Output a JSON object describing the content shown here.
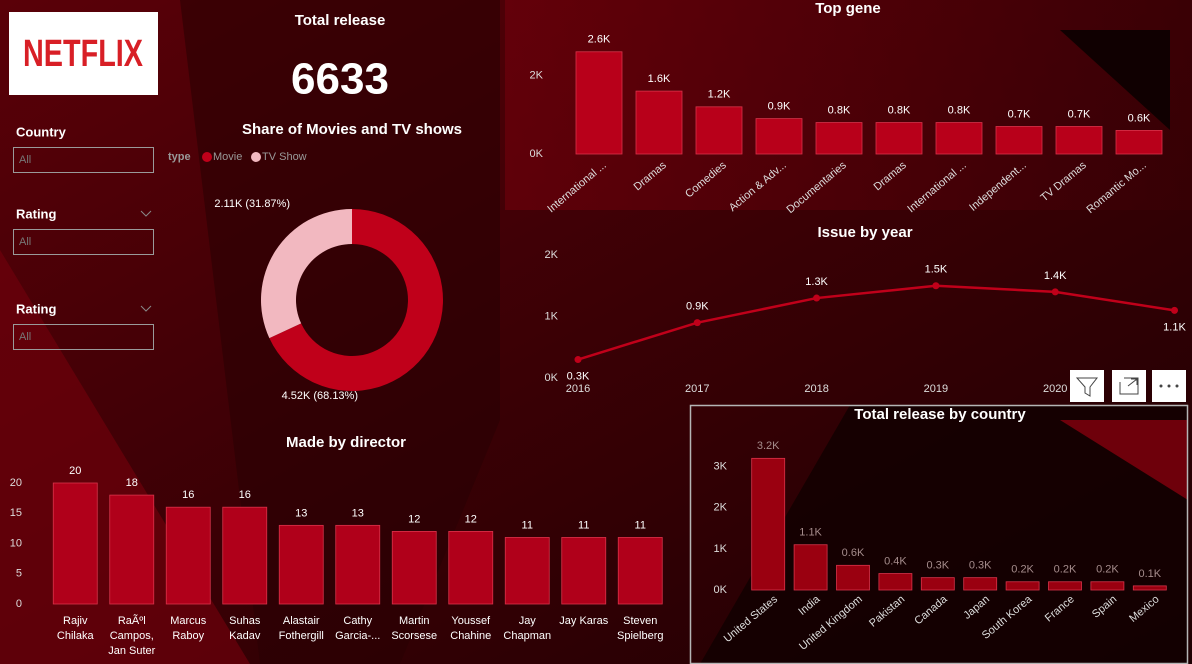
{
  "logo": {
    "text": "NETFLIX"
  },
  "kpi": {
    "title": "Total release",
    "value": 6633
  },
  "slicers": [
    {
      "label": "Country",
      "value": "All"
    },
    {
      "label": "Rating",
      "value": "All"
    },
    {
      "label": "Rating",
      "value": "All"
    }
  ],
  "chart_data": [
    {
      "type": "donut",
      "title": "Share of Movies and TV shows",
      "legend_title": "type",
      "categories": [
        "Movie",
        "TV Show"
      ],
      "values": [
        4519,
        2114
      ],
      "value_labels": [
        "4.52K (68.13%)",
        "2.11K (31.87%)"
      ],
      "colors": [
        "#c0001a",
        "#f2b8c0"
      ]
    },
    {
      "type": "bar",
      "title": "Top gene",
      "categories": [
        "International ...",
        "Dramas",
        "Comedies",
        "Action & Adv...",
        "Documentaries",
        "Dramas",
        "International ...",
        "Independent...",
        "TV Dramas",
        "Romantic Mo..."
      ],
      "values": [
        2600,
        1600,
        1200,
        900,
        800,
        800,
        800,
        700,
        700,
        600
      ],
      "value_labels": [
        "2.6K",
        "1.6K",
        "1.2K",
        "0.9K",
        "0.8K",
        "0.8K",
        "0.8K",
        "0.7K",
        "0.7K",
        "0.6K"
      ],
      "color": "#b8001a",
      "ylim": [
        0,
        2900
      ],
      "yticks": [
        {
          "value": 0,
          "label": "0K"
        },
        {
          "value": 2000,
          "label": "2K"
        }
      ]
    },
    {
      "type": "line",
      "title": "Issue by year",
      "categories": [
        "2016",
        "2017",
        "2018",
        "2019",
        "2020",
        null
      ],
      "values": [
        300,
        900,
        1300,
        1500,
        1400,
        1100
      ],
      "value_labels": [
        "0.3K",
        "0.9K",
        "1.3K",
        "1.5K",
        "1.4K",
        "1.1K"
      ],
      "color": "#c0001a",
      "ylim": [
        0,
        2000
      ],
      "yticks": [
        {
          "value": 0,
          "label": "0K"
        },
        {
          "value": 1000,
          "label": "1K"
        },
        {
          "value": 2000,
          "label": "2K"
        }
      ]
    },
    {
      "type": "bar",
      "title": "Made by director",
      "categories": [
        "Rajiv Chilaka",
        "RaÃºl Campos, Jan Suter",
        "Marcus Raboy",
        "Suhas Kadav",
        "Alastair Fothergill",
        "Cathy Garcia-...",
        "Martin Scorsese",
        "Youssef Chahine",
        "Jay Chapman",
        "Jay Karas",
        "Steven Spielberg"
      ],
      "values": [
        20,
        18,
        16,
        16,
        13,
        13,
        12,
        12,
        11,
        11,
        11
      ],
      "color": "#b0001a",
      "ylim": [
        0,
        20
      ],
      "yticks": [
        0,
        5,
        10,
        15,
        20
      ]
    },
    {
      "type": "bar",
      "title": "Total release by country",
      "categories": [
        "United States",
        "India",
        "United Kingdom",
        "Pakistan",
        "Canada",
        "Japan",
        "South Korea",
        "France",
        "Spain",
        "Mexico"
      ],
      "values": [
        3200,
        1100,
        600,
        400,
        300,
        300,
        200,
        200,
        200,
        100
      ],
      "value_labels": [
        "3.2K",
        "1.1K",
        "0.6K",
        "0.4K",
        "0.3K",
        "0.3K",
        "0.2K",
        "0.2K",
        "0.2K",
        "0.1K"
      ],
      "color": "#9a0010",
      "ylim": [
        0,
        3500
      ],
      "yticks": [
        {
          "value": 0,
          "label": "0K"
        },
        {
          "value": 1000,
          "label": "1K"
        },
        {
          "value": 2000,
          "label": "2K"
        },
        {
          "value": 3000,
          "label": "3K"
        }
      ]
    }
  ]
}
